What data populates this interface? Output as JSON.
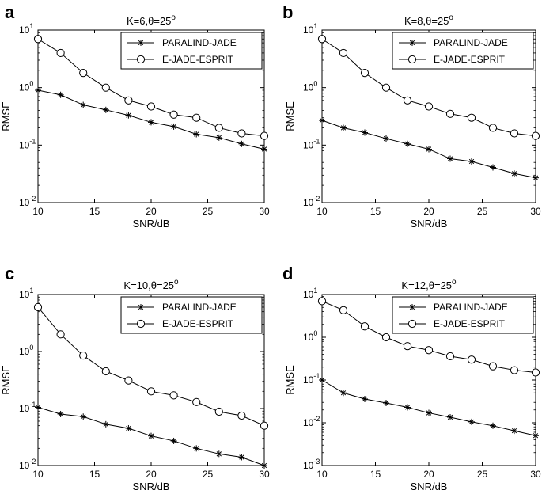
{
  "chart_data": [
    {
      "panel": "a",
      "type": "line",
      "title": "K=6,θ=25",
      "title_sup": "o",
      "xlabel": "SNR/dB",
      "ylabel": "RMSE",
      "xlim": [
        10,
        30
      ],
      "ylim_exp": [
        -2,
        1
      ],
      "xticks": [
        10,
        15,
        20,
        25,
        30
      ],
      "grid": false,
      "legend_position": "top-right",
      "x": [
        10,
        12,
        14,
        16,
        18,
        20,
        22,
        24,
        26,
        28,
        30
      ],
      "series": [
        {
          "name": "PARALIND-JADE",
          "marker": "star",
          "values": [
            0.9,
            0.75,
            0.5,
            0.41,
            0.33,
            0.25,
            0.21,
            0.155,
            0.135,
            0.105,
            0.085
          ]
        },
        {
          "name": "E-JADE-ESPRIT",
          "marker": "circle",
          "values": [
            7.0,
            4.0,
            1.8,
            1.0,
            0.6,
            0.47,
            0.34,
            0.3,
            0.2,
            0.16,
            0.145
          ]
        }
      ]
    },
    {
      "panel": "b",
      "type": "line",
      "title": "K=8,θ=25",
      "title_sup": "o",
      "xlabel": "SNR/dB",
      "ylabel": "RMSE",
      "xlim": [
        10,
        30
      ],
      "ylim_exp": [
        -2,
        1
      ],
      "xticks": [
        10,
        15,
        20,
        25,
        30
      ],
      "grid": false,
      "legend_position": "top-right",
      "x": [
        10,
        12,
        14,
        16,
        18,
        20,
        22,
        24,
        26,
        28,
        30
      ],
      "series": [
        {
          "name": "PARALIND-JADE",
          "marker": "star",
          "values": [
            0.27,
            0.2,
            0.165,
            0.13,
            0.105,
            0.085,
            0.058,
            0.052,
            0.041,
            0.032,
            0.027
          ]
        },
        {
          "name": "E-JADE-ESPRIT",
          "marker": "circle",
          "values": [
            7.0,
            4.0,
            1.8,
            1.0,
            0.6,
            0.47,
            0.35,
            0.3,
            0.2,
            0.16,
            0.145
          ]
        }
      ]
    },
    {
      "panel": "c",
      "type": "line",
      "title": "K=10,θ=25",
      "title_sup": "o",
      "xlabel": "SNR/dB",
      "ylabel": "RMSE",
      "xlim": [
        10,
        30
      ],
      "ylim_exp": [
        -2,
        1
      ],
      "xticks": [
        10,
        15,
        20,
        25,
        30
      ],
      "grid": false,
      "legend_position": "top-right",
      "x": [
        10,
        12,
        14,
        16,
        18,
        20,
        22,
        24,
        26,
        28,
        30
      ],
      "series": [
        {
          "name": "PARALIND-JADE",
          "marker": "star",
          "values": [
            0.105,
            0.08,
            0.072,
            0.053,
            0.045,
            0.033,
            0.027,
            0.02,
            0.016,
            0.014,
            0.01
          ]
        },
        {
          "name": "E-JADE-ESPRIT",
          "marker": "circle",
          "values": [
            6.0,
            2.0,
            0.85,
            0.45,
            0.31,
            0.2,
            0.17,
            0.13,
            0.088,
            0.075,
            0.05
          ]
        }
      ]
    },
    {
      "panel": "d",
      "type": "line",
      "title": "K=12,θ=25",
      "title_sup": "o",
      "xlabel": "SNR/dB",
      "ylabel": "RMSE",
      "xlim": [
        10,
        30
      ],
      "ylim_exp": [
        -3,
        1
      ],
      "xticks": [
        10,
        15,
        20,
        25,
        30
      ],
      "grid": false,
      "legend_position": "top-right",
      "x": [
        10,
        12,
        14,
        16,
        18,
        20,
        22,
        24,
        26,
        28,
        30
      ],
      "series": [
        {
          "name": "PARALIND-JADE",
          "marker": "star",
          "values": [
            0.1,
            0.05,
            0.036,
            0.029,
            0.023,
            0.017,
            0.0135,
            0.0105,
            0.0085,
            0.0065,
            0.005
          ]
        },
        {
          "name": "E-JADE-ESPRIT",
          "marker": "circle",
          "values": [
            7.0,
            4.3,
            1.8,
            1.0,
            0.62,
            0.5,
            0.36,
            0.3,
            0.21,
            0.17,
            0.15
          ]
        }
      ]
    }
  ]
}
